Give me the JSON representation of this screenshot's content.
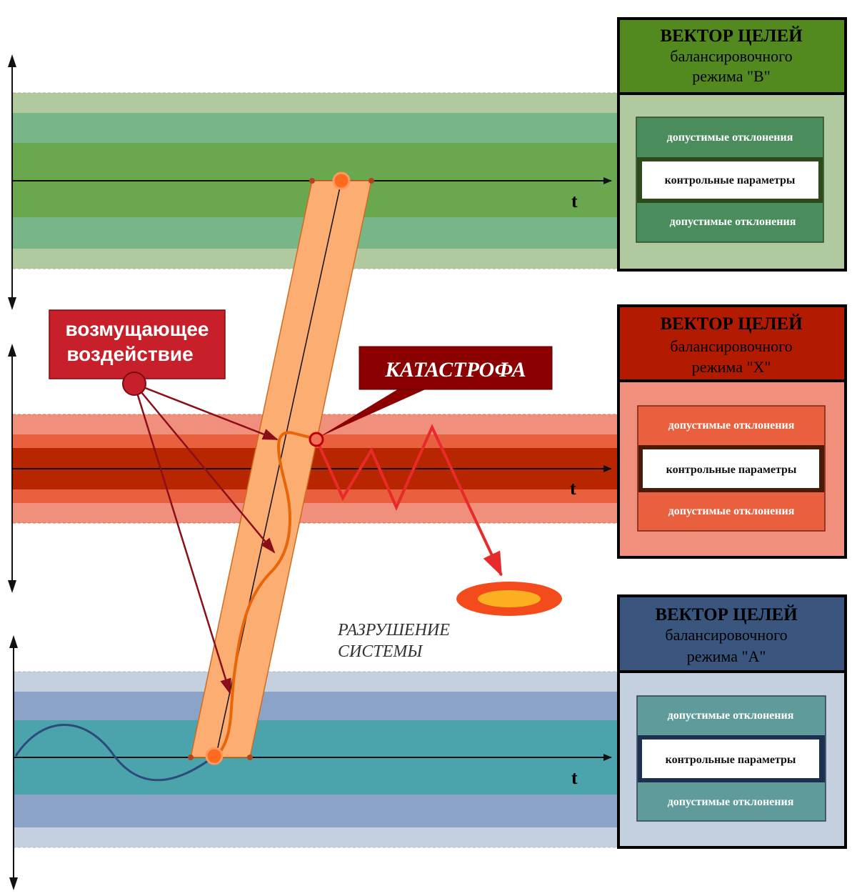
{
  "colors": {
    "green_outer": "#b0c99f",
    "green_mid": "#78b587",
    "green_core": "#6aa84f",
    "green_header": "#538a1f",
    "green_inner_dark": "#4b8c5c",
    "red_outer": "#f08f7b",
    "red_mid": "#e8603e",
    "red_core": "#b82600",
    "red_header": "#b31b00",
    "blue_outer": "#c4d0e0",
    "blue_mid": "#8ba3c7",
    "blue_core": "#4ba3ab",
    "blue_header": "#3a567f",
    "blue_inner_dark": "#5f9b9b",
    "corridor": "#fcae72",
    "corridor_stroke": "#d06a20",
    "disturbance": "#c8202a",
    "arrow_dark": "#8b0f1a",
    "catastrophe": "#8b0000",
    "zigzag": "#e82a2a",
    "path_orange": "#e8650a"
  },
  "boxes": [
    {
      "id": "B",
      "title": "ВЕКТОР ЦЕЛЕЙ",
      "line2": "балансировочного",
      "line3": "режима \"В\"",
      "deviation_top": "допустимые отклонения",
      "control": "контрольные параметры",
      "deviation_bottom": "допустимые отклонения"
    },
    {
      "id": "X",
      "title": "ВЕКТОР ЦЕЛЕЙ",
      "line2": "балансировочного",
      "line3": "режима \"Х\"",
      "deviation_top": "допустимые отклонения",
      "control": "контрольные параметры",
      "deviation_bottom": "допустимые отклонения"
    },
    {
      "id": "A",
      "title": "ВЕКТОР ЦЕЛЕЙ",
      "line2": "балансировочного",
      "line3": "режима \"А\"",
      "deviation_top": "допустимые отклонения",
      "control": "контрольные параметры",
      "deviation_bottom": "допустимые отклонения"
    }
  ],
  "axis_labels": {
    "t_top": "t",
    "t_middle": "t",
    "t_bottom": "t"
  },
  "disturbance": {
    "line1": "возмущающее",
    "line2": "воздействие"
  },
  "catastrophe": "КАТАСТРОФА",
  "destruction": {
    "line1": "РАЗРУШЕНИЕ",
    "line2": "СИСТЕМЫ"
  }
}
